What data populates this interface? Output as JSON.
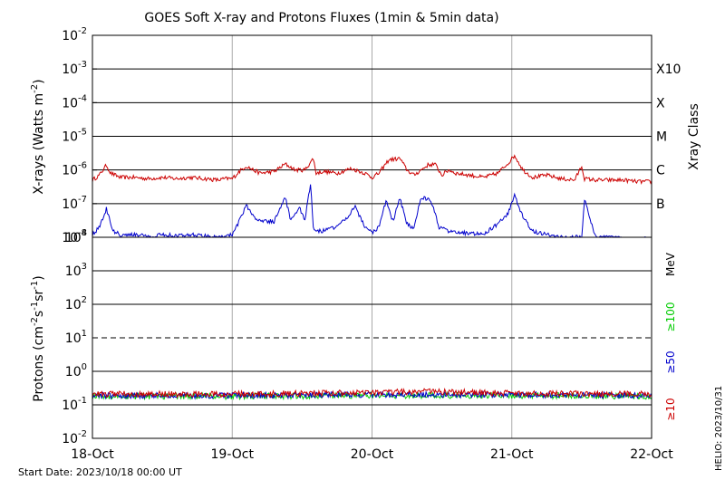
{
  "title": "GOES Soft X-ray and Protons Fluxes   (1min & 5min data)",
  "footer": {
    "start_date": "Start Date: 2023/10/18 00:00 UT",
    "credit": "HELIO: 2023/10/31"
  },
  "colors": {
    "xray_long": "#cc0000",
    "xray_short": "#0000cc",
    "proton_10": "#cc0000",
    "proton_50": "#0000cc",
    "proton_100": "#00cc00",
    "grid": "#000000",
    "day_divider": "#aaaaaa"
  },
  "chart_data": [
    {
      "type": "line",
      "name": "xray_panel",
      "ylabel": "X-rays (Watts m-2)",
      "ylabel_parts": {
        "base": "X-rays (Watts m",
        "sup": "-2",
        "end": ")"
      },
      "yscale": "log",
      "ylim": [
        1e-08,
        0.01
      ],
      "yticks": [
        {
          "base": "10",
          "exp": "-2"
        },
        {
          "base": "10",
          "exp": "-3"
        },
        {
          "base": "10",
          "exp": "-4"
        },
        {
          "base": "10",
          "exp": "-5"
        },
        {
          "base": "10",
          "exp": "-6"
        },
        {
          "base": "10",
          "exp": "-7"
        },
        {
          "base": "10",
          "exp": "-8"
        }
      ],
      "right_axis_label": "Xray Class",
      "flare_classes": [
        {
          "label": "X10",
          "value": 0.001
        },
        {
          "label": "X",
          "value": 0.0001
        },
        {
          "label": "M",
          "value": 1e-05
        },
        {
          "label": "C",
          "value": 1e-06
        },
        {
          "label": "B",
          "value": 1e-07
        }
      ],
      "x_days": [
        "18-Oct",
        "19-Oct",
        "20-Oct",
        "21-Oct",
        "22-Oct"
      ],
      "series": [
        {
          "key": "long",
          "x": [
            0,
            0.05,
            0.1,
            0.13,
            0.2,
            0.3,
            0.4,
            0.5,
            0.6,
            0.7,
            0.8,
            0.9,
            0.95,
            1.0,
            1.05,
            1.1,
            1.15,
            1.2,
            1.3,
            1.38,
            1.45,
            1.52,
            1.58,
            1.6,
            1.65,
            1.75,
            1.85,
            1.95,
            2.0,
            2.05,
            2.12,
            2.2,
            2.25,
            2.3,
            2.4,
            2.45,
            2.5,
            2.55,
            2.6,
            2.7,
            2.8,
            2.9,
            2.98,
            3.02,
            3.08,
            3.15,
            3.25,
            3.35,
            3.45,
            3.5,
            3.52,
            3.6,
            3.7,
            3.8,
            3.9,
            4.0
          ],
          "values": [
            5e-07,
            7e-07,
            1.4e-06,
            8e-07,
            6e-07,
            6e-07,
            5.5e-07,
            6e-07,
            5.5e-07,
            6e-07,
            5.5e-07,
            5e-07,
            5.5e-07,
            5.5e-07,
            9e-07,
            1.3e-06,
            1e-06,
            8e-07,
            9e-07,
            1.5e-06,
            1e-06,
            1e-06,
            2.2e-06,
            8e-07,
            9e-07,
            8e-07,
            1.1e-06,
            8e-07,
            6e-07,
            8e-07,
            2e-06,
            2.2e-06,
            1e-06,
            7e-07,
            1.4e-06,
            1.5e-06,
            7e-07,
            1e-06,
            8e-07,
            7e-07,
            6e-07,
            8e-07,
            1.7e-06,
            2.7e-06,
            1e-06,
            6e-07,
            7e-07,
            5.5e-07,
            5e-07,
            1.3e-06,
            5.5e-07,
            5e-07,
            5e-07,
            5e-07,
            4.5e-07,
            4.5e-07
          ]
        },
        {
          "key": "short",
          "x": [
            0,
            0.05,
            0.1,
            0.15,
            0.2,
            0.3,
            0.4,
            0.5,
            0.6,
            0.7,
            0.8,
            0.9,
            0.95,
            1.0,
            1.05,
            1.1,
            1.15,
            1.2,
            1.3,
            1.38,
            1.42,
            1.48,
            1.52,
            1.56,
            1.58,
            1.62,
            1.7,
            1.8,
            1.88,
            1.95,
            2.0,
            2.05,
            2.1,
            2.15,
            2.2,
            2.25,
            2.3,
            2.35,
            2.42,
            2.48,
            2.55,
            2.6,
            2.7,
            2.8,
            2.9,
            2.97,
            3.02,
            3.08,
            3.15,
            3.25,
            3.35,
            3.45,
            3.5,
            3.52,
            3.6,
            3.7,
            3.8,
            3.9,
            4.0
          ],
          "values": [
            1.2e-08,
            2e-08,
            7e-08,
            1.5e-08,
            1.2e-08,
            1.2e-08,
            1.1e-08,
            1.2e-08,
            1.1e-08,
            1.2e-08,
            1.1e-08,
            1e-08,
            1.1e-08,
            1.2e-08,
            3e-08,
            9e-08,
            4e-08,
            3e-08,
            3e-08,
            1.5e-07,
            3e-08,
            8e-08,
            3e-08,
            4e-07,
            2e-08,
            1.5e-08,
            1.7e-08,
            3e-08,
            8e-08,
            2e-08,
            1.4e-08,
            2e-08,
            1.2e-07,
            3e-08,
            1.4e-07,
            2.5e-08,
            1.8e-08,
            1.5e-07,
            1.3e-07,
            2e-08,
            1.5e-08,
            1.4e-08,
            1.3e-08,
            1.2e-08,
            2.5e-08,
            5e-08,
            1.7e-07,
            4e-08,
            1.5e-08,
            1.2e-08,
            1e-08,
            1e-08,
            1e-08,
            1.3e-07,
            1e-08,
            1e-08,
            9e-09,
            9e-09,
            9e-09
          ]
        }
      ]
    },
    {
      "type": "line",
      "name": "proton_panel",
      "ylabel": "Protons (cm-2s-1sr-1)",
      "ylabel_parts": {
        "base": "Protons (cm",
        "sup1": "-2",
        "mid1": "s",
        "sup2": "-1",
        "mid2": "sr",
        "sup3": "-1",
        "end": ")"
      },
      "yscale": "log",
      "ylim": [
        0.01,
        10000
      ],
      "yticks": [
        {
          "base": "10",
          "exp": "4"
        },
        {
          "base": "10",
          "exp": "3"
        },
        {
          "base": "10",
          "exp": "2"
        },
        {
          "base": "10",
          "exp": "1"
        },
        {
          "base": "10",
          "exp": "0"
        },
        {
          "base": "10",
          "exp": "-1"
        },
        {
          "base": "10",
          "exp": "-2"
        }
      ],
      "threshold_dashed": 10,
      "right_labels": [
        {
          "label": "MeV",
          "color_key": "grid"
        },
        {
          "label": "≥100",
          "color_key": "proton_100"
        },
        {
          "label": "≥50",
          "color_key": "proton_50"
        },
        {
          "label": "≥10",
          "color_key": "proton_10"
        }
      ],
      "x_days": [
        "18-Oct",
        "19-Oct",
        "20-Oct",
        "21-Oct",
        "22-Oct"
      ],
      "series": [
        {
          "key": "p10",
          "level": 0.22,
          "x": [
            0,
            1,
            2,
            2.4,
            2.6,
            3,
            4
          ],
          "values": [
            0.21,
            0.21,
            0.23,
            0.25,
            0.24,
            0.22,
            0.21
          ]
        },
        {
          "key": "p50",
          "level": 0.19,
          "x": [
            0,
            1,
            2,
            3,
            4
          ],
          "values": [
            0.19,
            0.19,
            0.2,
            0.2,
            0.19
          ]
        },
        {
          "key": "p100",
          "level": 0.18,
          "x": [
            0,
            1,
            2,
            3,
            4
          ],
          "values": [
            0.18,
            0.18,
            0.19,
            0.19,
            0.18
          ]
        }
      ]
    }
  ]
}
